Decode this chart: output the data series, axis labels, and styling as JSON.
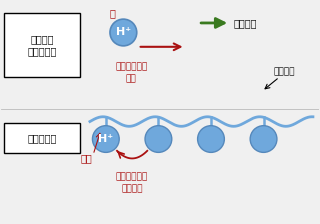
{
  "bg_color": "#f0f0f0",
  "box1_label": "液体酸型\n（従来法）",
  "box2_label": "高分子酸型",
  "acid_label": "酸",
  "hp_label": "H⁺",
  "ion_move_label": "水素イオンの\n移動",
  "leakage_label": "酸の漏出",
  "polymer_chain_label": "高分子鎖",
  "acid_group_label": "酸基",
  "ion_transfer_label": "水素イオンの\n受け渡し",
  "circle_color": "#6fa8dc",
  "circle_edge": "#5588bb",
  "chain_color": "#6fa8dc",
  "dark_red": "#aa1111",
  "green_color": "#3a7a20",
  "text_dark_red": "#aa1111",
  "text_color": "#111111",
  "figw": 3.2,
  "figh": 2.24,
  "dpi": 100
}
